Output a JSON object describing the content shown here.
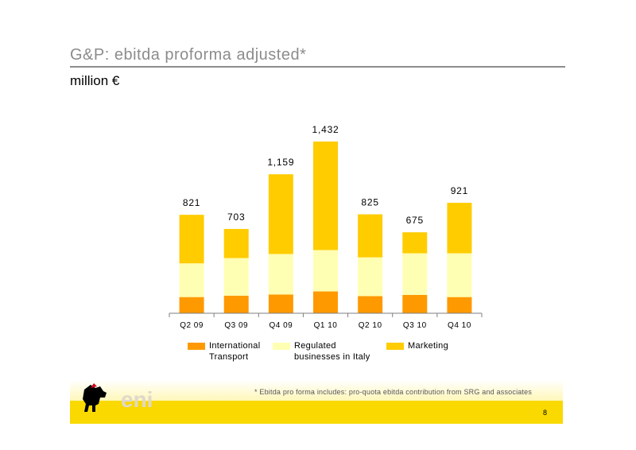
{
  "header": {
    "title": "G&P: ebitda proforma adjusted*",
    "subtitle": "million €"
  },
  "colors": {
    "international_transport": "#ff9900",
    "regulated": "#ffffb3",
    "marketing": "#ffcc00",
    "title_gray": "#8c8c8c",
    "brand_yellow": "#f9d900"
  },
  "chart_data": {
    "type": "bar",
    "stacked": true,
    "categories": [
      "Q2 09",
      "Q3 09",
      "Q4 09",
      "Q1 10",
      "Q2 10",
      "Q3 10",
      "Q4 10"
    ],
    "series": [
      {
        "name": "International Transport",
        "values": [
          135,
          146,
          156,
          182,
          143,
          153,
          135
        ]
      },
      {
        "name": "Regulated businesses in Italy",
        "values": [
          281,
          314,
          338,
          345,
          323,
          347,
          365
        ]
      },
      {
        "name": "Marketing",
        "values": [
          405,
          243,
          665,
          905,
          359,
          175,
          421
        ]
      }
    ],
    "totals": [
      821,
      703,
      1159,
      1432,
      825,
      675,
      921
    ],
    "total_labels": [
      "821",
      "703",
      "1,159",
      "1,432",
      "825",
      "675",
      "921"
    ],
    "legend_position": "bottom",
    "grid": false
  },
  "legend": [
    {
      "label": "International\nTransport",
      "icon": "orange-swatch"
    },
    {
      "label": "Regulated\nbusinesses in Italy",
      "icon": "pale-yellow-swatch"
    },
    {
      "label": "Marketing",
      "icon": "yellow-swatch"
    }
  ],
  "footer": {
    "footnote": "*   Ebitda pro forma includes: pro-quota ebitda contribution from SRG and associates",
    "page_number": "8",
    "logo_text": "eni",
    "logo_icon": "six-legged-dog-logo"
  }
}
